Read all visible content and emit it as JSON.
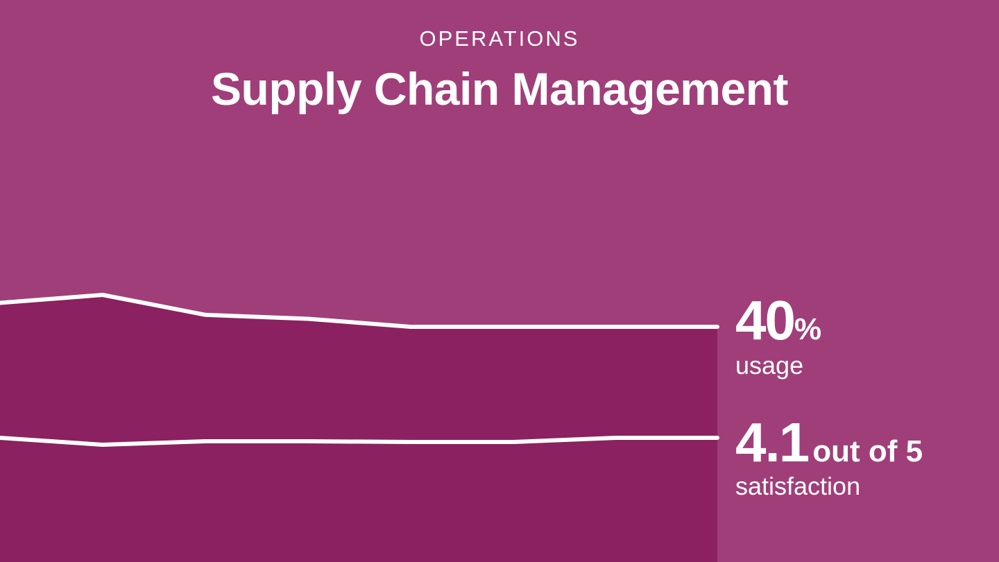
{
  "header": {
    "eyebrow": "OPERATIONS",
    "title": "Supply Chain Management"
  },
  "colors": {
    "background": "#a03e7a",
    "area": "#8b2160",
    "line": "#ffffff"
  },
  "chart_data": {
    "type": "area",
    "title": "Supply Chain Management",
    "xlabel": "",
    "ylabel": "",
    "series": [
      {
        "values": [
          46,
          48,
          43,
          42,
          40,
          40,
          40,
          40
        ]
      },
      {
        "values": [
          4.1,
          4.0,
          4.05,
          4.05,
          4.04,
          4.04,
          4.1,
          4.1
        ]
      }
    ],
    "grid": false,
    "legend": "none"
  },
  "metrics": {
    "usage": {
      "value": "40",
      "unit": "%",
      "label": "usage"
    },
    "satisfaction": {
      "value": "4.1",
      "suffix": "out of 5",
      "label": "satisfaction"
    }
  }
}
